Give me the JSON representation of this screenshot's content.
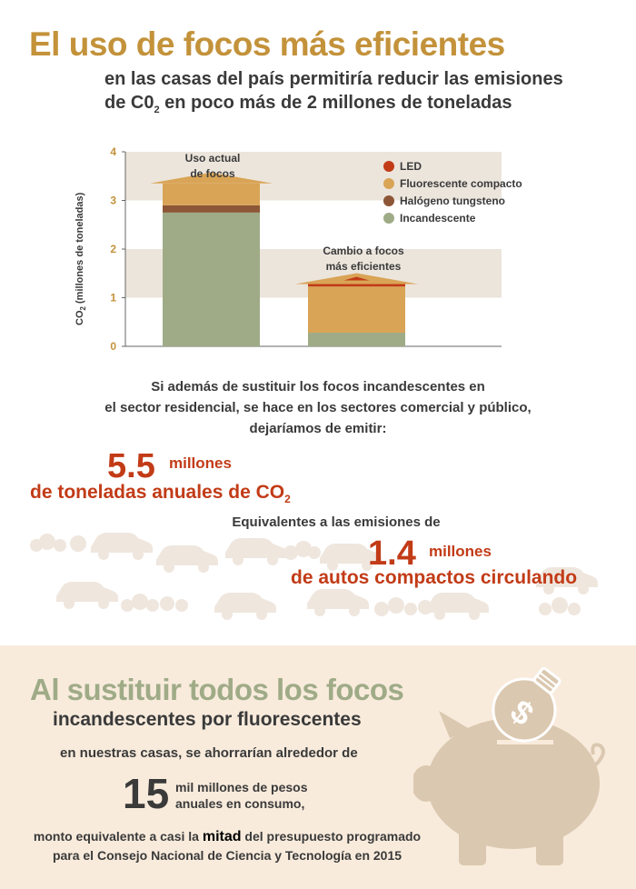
{
  "title": "El uso de focos más eficientes",
  "subtitle": {
    "line1": "en las casas del país permitiría reducir las emisiones",
    "line2_pre": "de C0",
    "line2_sub": "2",
    "line2_post": " en poco más de 2 millones de toneladas"
  },
  "chart_data": {
    "type": "bar",
    "stacked": true,
    "ylabel": "CO2 (millones de toneladas)",
    "ylim": [
      0,
      4
    ],
    "yticks": [
      "0",
      "1",
      "2",
      "3",
      "4"
    ],
    "bar_labels": [
      "Uso actual de focos",
      "Cambio a focos más eficientes"
    ],
    "series": [
      {
        "name": "Incandescente",
        "color": "#9fab87",
        "values": [
          2.75,
          0.28
        ]
      },
      {
        "name": "Halógeno tungsteno",
        "color": "#8d5636",
        "values": [
          0.15,
          0.0
        ]
      },
      {
        "name": "Fluorescente compacto",
        "color": "#d9a456",
        "values": [
          0.45,
          0.95
        ]
      },
      {
        "name": "LED",
        "color": "#c23b17",
        "values": [
          0.0,
          0.05
        ]
      }
    ],
    "legend_order": [
      "LED",
      "Fluorescente compacto",
      "Halógeno tungsteno",
      "Incandescente"
    ],
    "legend_position": "top-right",
    "grid_bands": true
  },
  "chart_text": {
    "ylabel_pre": "CO",
    "ylabel_sub": "2",
    "ylabel_post": " (millones de toneladas)",
    "bar1_label_l1": "Uso actual",
    "bar1_label_l2": "de focos",
    "bar2_label_l1": "Cambio a focos",
    "bar2_label_l2": "más eficientes"
  },
  "para1": {
    "l1": "Si además de sustituir los focos incandescentes en",
    "l2": "el sector residencial, se hace en los sectores comercial y público,",
    "l3": "dejaríamos de emitir:"
  },
  "stat1": {
    "number": "5.5",
    "unit": "millones",
    "line_pre": "de toneladas anuales de CO",
    "line_sub": "2"
  },
  "stat2": {
    "intro": "Equivalentes a las emisiones de",
    "number": "1.4",
    "unit": "millones",
    "line": "de autos compactos circulando"
  },
  "bottom": {
    "headline1": "Al sustituir todos los focos",
    "headline2": "incandescentes por fluorescentes",
    "line3": "en nuestras casas, se ahorrarían alrededor de",
    "number": "15",
    "num_l1": "mil millones de pesos",
    "num_l2": "anuales en consumo,",
    "foot_pre": "monto equivalente a casi la ",
    "foot_bold": "mitad",
    "foot_post": " del presupuesto programado",
    "foot_l2": "para el Consejo Nacional de Ciencia y Tecnología en 2015",
    "bulb_symbol": "$"
  },
  "colors": {
    "title": "#c3923a",
    "accent_red": "#c23b17",
    "green": "#9fab87",
    "band": "#ece5dc",
    "bottom_bg": "#f8ebdc",
    "pig": "#dbc8b0"
  }
}
